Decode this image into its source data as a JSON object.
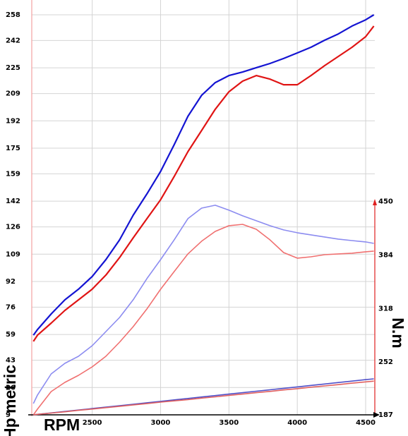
{
  "chart_data": {
    "type": "line",
    "xlabel": "RPM",
    "ylabel": "Hp metric",
    "y2label": "N.m",
    "x": [
      2070,
      2100,
      2200,
      2300,
      2400,
      2500,
      2600,
      2700,
      2800,
      2900,
      3000,
      3100,
      3200,
      3300,
      3400,
      3500,
      3600,
      3700,
      3800,
      3900,
      4000,
      4100,
      4200,
      4300,
      4400,
      4500,
      4560
    ],
    "xlim": [
      2058,
      4567
    ],
    "xticks": [
      2500,
      3000,
      3500,
      4000,
      4500
    ],
    "ylim": [
      9,
      258
    ],
    "yticks": [
      9,
      26,
      43,
      59,
      76,
      92,
      109,
      126,
      142,
      159,
      175,
      192,
      209,
      225,
      242,
      258
    ],
    "y2lim": [
      187,
      680
    ],
    "y2ticks": [
      187,
      252,
      318,
      384,
      450
    ],
    "grid": true,
    "series": [
      {
        "color": "#1414d2",
        "values": [
          58.6,
          62.1,
          71.8,
          80.6,
          87.2,
          95.1,
          105.6,
          117.9,
          133.3,
          146.5,
          160.5,
          177.2,
          194.8,
          207.9,
          215.8,
          220.2,
          222.4,
          225.1,
          227.7,
          230.8,
          234.3,
          237.8,
          242.2,
          246.1,
          251,
          254.9,
          258
        ]
      },
      {
        "color": "#e01414",
        "values": [
          54.7,
          58.6,
          66.1,
          74,
          80.6,
          87.2,
          96,
          106.9,
          119.2,
          131.1,
          142.9,
          157.4,
          172.8,
          186,
          199.2,
          210.1,
          216.7,
          220.2,
          218,
          214.5,
          214.5,
          220.2,
          226.4,
          232.1,
          237.8,
          244.4,
          251
        ]
      },
      {
        "color": "#8c8cf0",
        "axis": "y2",
        "values": [
          200.9,
          211.4,
          237.4,
          250.5,
          259.2,
          272.2,
          289.6,
          307,
          328.8,
          354.9,
          378.3,
          402.7,
          428.8,
          441.8,
          445.3,
          439.2,
          432.3,
          426.2,
          420.1,
          414.9,
          411.4,
          408.8,
          406.2,
          403.6,
          401.8,
          400.1,
          398.3
        ]
      },
      {
        "color": "#f07070",
        "axis": "y2",
        "values": [
          187,
          194,
          215.7,
          227,
          235.7,
          246.1,
          259.2,
          276.6,
          295.7,
          317.5,
          341.8,
          363.6,
          385.3,
          401,
          413.1,
          420.1,
          421.8,
          415.7,
          402.7,
          387,
          380.1,
          381.8,
          384.4,
          385.3,
          386.2,
          387.9,
          388.8
        ]
      },
      {
        "color": "#5050c8",
        "values": [
          9,
          9.3,
          10.2,
          11.1,
          12,
          12.9,
          13.8,
          14.7,
          15.6,
          16.5,
          17.4,
          18.3,
          19.2,
          20.1,
          21,
          21.9,
          22.8,
          23.7,
          24.6,
          25.5,
          26.4,
          27.3,
          28.2,
          29.1,
          30,
          30.9,
          31.4
        ]
      },
      {
        "color": "#e06060",
        "values": [
          9,
          9.3,
          10.1,
          10.9,
          11.8,
          12.6,
          13.5,
          14.3,
          15.2,
          16,
          16.9,
          17.7,
          18.5,
          19.4,
          20.2,
          21.1,
          21.9,
          22.8,
          23.6,
          24.5,
          25.3,
          26.2,
          27,
          27.8,
          28.7,
          29.5,
          30
        ]
      }
    ]
  }
}
